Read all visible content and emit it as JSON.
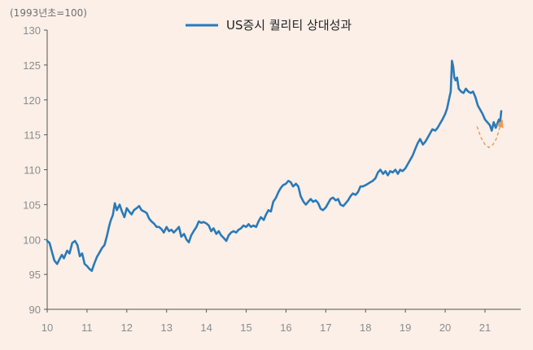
{
  "chart_data": {
    "type": "line",
    "title": "",
    "unit_label": "(1993년초=100)",
    "xlabel": "",
    "ylabel": "",
    "ylim": [
      90,
      130
    ],
    "yticks": [
      90,
      95,
      100,
      105,
      110,
      115,
      120,
      125,
      130
    ],
    "xlim": [
      2010.0,
      2021.9
    ],
    "xticks": [
      {
        "label": "10",
        "x": 2010
      },
      {
        "label": "11",
        "x": 2011
      },
      {
        "label": "12",
        "x": 2012
      },
      {
        "label": "13",
        "x": 2013
      },
      {
        "label": "14",
        "x": 2014
      },
      {
        "label": "15",
        "x": 2015
      },
      {
        "label": "16",
        "x": 2016
      },
      {
        "label": "17",
        "x": 2017
      },
      {
        "label": "18",
        "x": 2018
      },
      {
        "label": "19",
        "x": 2019
      },
      {
        "label": "20",
        "x": 2020
      },
      {
        "label": "21",
        "x": 2021
      }
    ],
    "grid": false,
    "legend_position": "top-center",
    "series": [
      {
        "name": "US증시 퀄리티 상대성과",
        "color": "#2a7ab8",
        "points": [
          [
            2010.0,
            99.8
          ],
          [
            2010.06,
            99.5
          ],
          [
            2010.12,
            98.2
          ],
          [
            2010.18,
            97.0
          ],
          [
            2010.25,
            96.5
          ],
          [
            2010.31,
            97.2
          ],
          [
            2010.37,
            97.8
          ],
          [
            2010.42,
            97.3
          ],
          [
            2010.5,
            98.4
          ],
          [
            2010.56,
            98.0
          ],
          [
            2010.63,
            99.5
          ],
          [
            2010.7,
            99.8
          ],
          [
            2010.76,
            99.2
          ],
          [
            2010.82,
            97.6
          ],
          [
            2010.88,
            98.0
          ],
          [
            2010.94,
            96.5
          ],
          [
            2011.0,
            96.2
          ],
          [
            2011.06,
            95.8
          ],
          [
            2011.12,
            95.5
          ],
          [
            2011.18,
            96.5
          ],
          [
            2011.25,
            97.5
          ],
          [
            2011.32,
            98.2
          ],
          [
            2011.38,
            98.8
          ],
          [
            2011.44,
            99.2
          ],
          [
            2011.5,
            100.5
          ],
          [
            2011.56,
            102.0
          ],
          [
            2011.6,
            102.8
          ],
          [
            2011.65,
            103.5
          ],
          [
            2011.7,
            105.2
          ],
          [
            2011.75,
            104.2
          ],
          [
            2011.82,
            105.0
          ],
          [
            2011.88,
            104.0
          ],
          [
            2011.94,
            103.2
          ],
          [
            2012.0,
            104.5
          ],
          [
            2012.06,
            104.0
          ],
          [
            2012.12,
            103.6
          ],
          [
            2012.18,
            104.2
          ],
          [
            2012.25,
            104.5
          ],
          [
            2012.31,
            104.8
          ],
          [
            2012.37,
            104.2
          ],
          [
            2012.44,
            104.0
          ],
          [
            2012.5,
            103.8
          ],
          [
            2012.56,
            103.0
          ],
          [
            2012.62,
            102.6
          ],
          [
            2012.68,
            102.3
          ],
          [
            2012.75,
            101.8
          ],
          [
            2012.81,
            101.8
          ],
          [
            2012.87,
            101.5
          ],
          [
            2012.93,
            101.0
          ],
          [
            2013.0,
            101.8
          ],
          [
            2013.06,
            101.2
          ],
          [
            2013.12,
            101.4
          ],
          [
            2013.18,
            101.0
          ],
          [
            2013.25,
            101.4
          ],
          [
            2013.31,
            101.8
          ],
          [
            2013.37,
            100.4
          ],
          [
            2013.44,
            100.8
          ],
          [
            2013.5,
            100.0
          ],
          [
            2013.56,
            99.6
          ],
          [
            2013.62,
            100.6
          ],
          [
            2013.68,
            101.2
          ],
          [
            2013.75,
            101.8
          ],
          [
            2013.81,
            102.6
          ],
          [
            2013.87,
            102.4
          ],
          [
            2013.93,
            102.5
          ],
          [
            2014.0,
            102.3
          ],
          [
            2014.06,
            102.0
          ],
          [
            2014.12,
            101.2
          ],
          [
            2014.18,
            101.6
          ],
          [
            2014.25,
            100.8
          ],
          [
            2014.31,
            101.2
          ],
          [
            2014.37,
            100.6
          ],
          [
            2014.44,
            100.2
          ],
          [
            2014.5,
            99.8
          ],
          [
            2014.56,
            100.6
          ],
          [
            2014.62,
            101.0
          ],
          [
            2014.68,
            101.2
          ],
          [
            2014.75,
            101.0
          ],
          [
            2014.81,
            101.4
          ],
          [
            2014.87,
            101.6
          ],
          [
            2014.93,
            102.0
          ],
          [
            2015.0,
            101.8
          ],
          [
            2015.06,
            102.2
          ],
          [
            2015.12,
            101.8
          ],
          [
            2015.18,
            102.0
          ],
          [
            2015.25,
            101.8
          ],
          [
            2015.31,
            102.6
          ],
          [
            2015.37,
            103.2
          ],
          [
            2015.44,
            102.8
          ],
          [
            2015.5,
            103.6
          ],
          [
            2015.56,
            104.2
          ],
          [
            2015.62,
            104.0
          ],
          [
            2015.68,
            105.4
          ],
          [
            2015.75,
            106.0
          ],
          [
            2015.81,
            106.8
          ],
          [
            2015.87,
            107.4
          ],
          [
            2015.93,
            107.8
          ],
          [
            2016.0,
            108.0
          ],
          [
            2016.06,
            108.4
          ],
          [
            2016.12,
            108.2
          ],
          [
            2016.18,
            107.6
          ],
          [
            2016.25,
            108.0
          ],
          [
            2016.31,
            107.6
          ],
          [
            2016.37,
            106.2
          ],
          [
            2016.44,
            105.4
          ],
          [
            2016.5,
            105.0
          ],
          [
            2016.56,
            105.4
          ],
          [
            2016.62,
            105.8
          ],
          [
            2016.68,
            105.4
          ],
          [
            2016.75,
            105.6
          ],
          [
            2016.81,
            105.2
          ],
          [
            2016.87,
            104.4
          ],
          [
            2016.93,
            104.2
          ],
          [
            2017.0,
            104.6
          ],
          [
            2017.06,
            105.2
          ],
          [
            2017.12,
            105.8
          ],
          [
            2017.18,
            106.0
          ],
          [
            2017.25,
            105.6
          ],
          [
            2017.31,
            105.8
          ],
          [
            2017.37,
            105.0
          ],
          [
            2017.44,
            104.8
          ],
          [
            2017.5,
            105.2
          ],
          [
            2017.56,
            105.6
          ],
          [
            2017.62,
            106.2
          ],
          [
            2017.68,
            106.6
          ],
          [
            2017.75,
            106.4
          ],
          [
            2017.81,
            106.8
          ],
          [
            2017.87,
            107.6
          ],
          [
            2017.93,
            107.6
          ],
          [
            2018.0,
            107.8
          ],
          [
            2018.06,
            108.0
          ],
          [
            2018.12,
            108.2
          ],
          [
            2018.18,
            108.4
          ],
          [
            2018.25,
            108.8
          ],
          [
            2018.31,
            109.6
          ],
          [
            2018.37,
            110.0
          ],
          [
            2018.44,
            109.4
          ],
          [
            2018.5,
            109.8
          ],
          [
            2018.56,
            109.2
          ],
          [
            2018.62,
            109.8
          ],
          [
            2018.68,
            109.6
          ],
          [
            2018.75,
            110.0
          ],
          [
            2018.81,
            109.4
          ],
          [
            2018.87,
            110.0
          ],
          [
            2018.93,
            109.8
          ],
          [
            2019.0,
            110.2
          ],
          [
            2019.06,
            110.8
          ],
          [
            2019.12,
            111.4
          ],
          [
            2019.18,
            112.0
          ],
          [
            2019.25,
            113.0
          ],
          [
            2019.31,
            113.8
          ],
          [
            2019.37,
            114.4
          ],
          [
            2019.44,
            113.6
          ],
          [
            2019.5,
            114.0
          ],
          [
            2019.56,
            114.6
          ],
          [
            2019.62,
            115.2
          ],
          [
            2019.68,
            115.8
          ],
          [
            2019.75,
            115.6
          ],
          [
            2019.81,
            116.0
          ],
          [
            2019.87,
            116.6
          ],
          [
            2019.93,
            117.2
          ],
          [
            2020.0,
            118.0
          ],
          [
            2020.05,
            118.8
          ],
          [
            2020.1,
            120.2
          ],
          [
            2020.14,
            121.2
          ],
          [
            2020.17,
            125.6
          ],
          [
            2020.2,
            124.8
          ],
          [
            2020.23,
            123.2
          ],
          [
            2020.26,
            122.8
          ],
          [
            2020.3,
            123.2
          ],
          [
            2020.34,
            121.6
          ],
          [
            2020.4,
            121.2
          ],
          [
            2020.46,
            121.0
          ],
          [
            2020.52,
            121.6
          ],
          [
            2020.58,
            121.2
          ],
          [
            2020.64,
            121.0
          ],
          [
            2020.7,
            121.2
          ],
          [
            2020.76,
            120.4
          ],
          [
            2020.82,
            119.2
          ],
          [
            2020.88,
            118.6
          ],
          [
            2020.94,
            118.0
          ],
          [
            2021.0,
            117.2
          ],
          [
            2021.06,
            116.8
          ],
          [
            2021.12,
            116.4
          ],
          [
            2021.17,
            115.6
          ],
          [
            2021.22,
            116.8
          ],
          [
            2021.27,
            116.0
          ],
          [
            2021.31,
            116.6
          ],
          [
            2021.35,
            117.2
          ],
          [
            2021.38,
            116.8
          ],
          [
            2021.41,
            118.4
          ]
        ]
      }
    ],
    "annotation": {
      "type": "dashed-arrow",
      "color": "#e99a5a",
      "points": [
        [
          2020.8,
          116.2
        ],
        [
          2020.9,
          114.6
        ],
        [
          2021.0,
          113.6
        ],
        [
          2021.1,
          113.2
        ],
        [
          2021.2,
          113.6
        ],
        [
          2021.28,
          114.4
        ],
        [
          2021.33,
          115.2
        ],
        [
          2021.38,
          116.2
        ],
        [
          2021.43,
          117.0
        ]
      ]
    }
  }
}
